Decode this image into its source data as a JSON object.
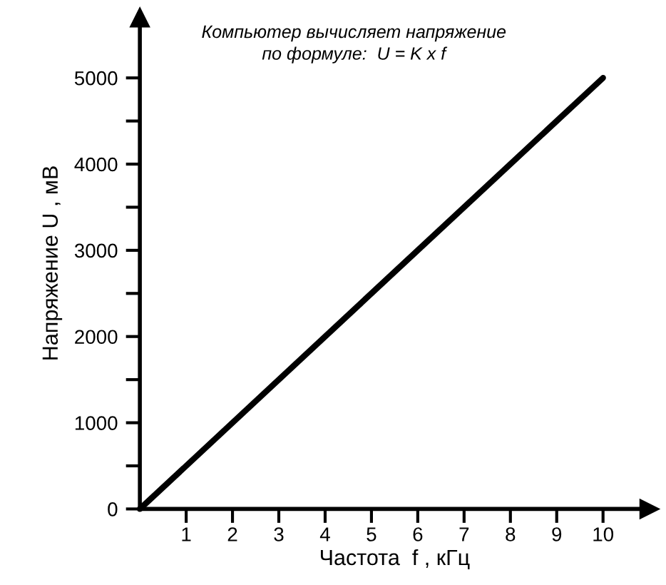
{
  "chart_data": {
    "type": "line",
    "x": [
      0,
      10
    ],
    "values": [
      0,
      5000
    ],
    "color": "#000000",
    "xlim": [
      0,
      11
    ],
    "ylim": [
      0,
      5700
    ],
    "xticks": [
      1,
      2,
      3,
      4,
      5,
      6,
      7,
      8,
      9,
      10
    ],
    "yticks": [
      0,
      {
        "value": 500,
        "label": null
      },
      1000,
      {
        "value": 1500,
        "label": null
      },
      2000,
      {
        "value": 2500,
        "label": null
      },
      3000,
      {
        "value": 3500,
        "label": null
      },
      4000,
      {
        "value": 4500,
        "label": null
      },
      5000
    ],
    "xlabel": "Частота  f , кГц",
    "ylabel": "Напряжение U , мВ",
    "annotations": [
      "Компьютер вычисляет напряжение\nпо формуле:  U = K x f"
    ],
    "grid": false,
    "marker": "none",
    "line_style": "solid"
  }
}
